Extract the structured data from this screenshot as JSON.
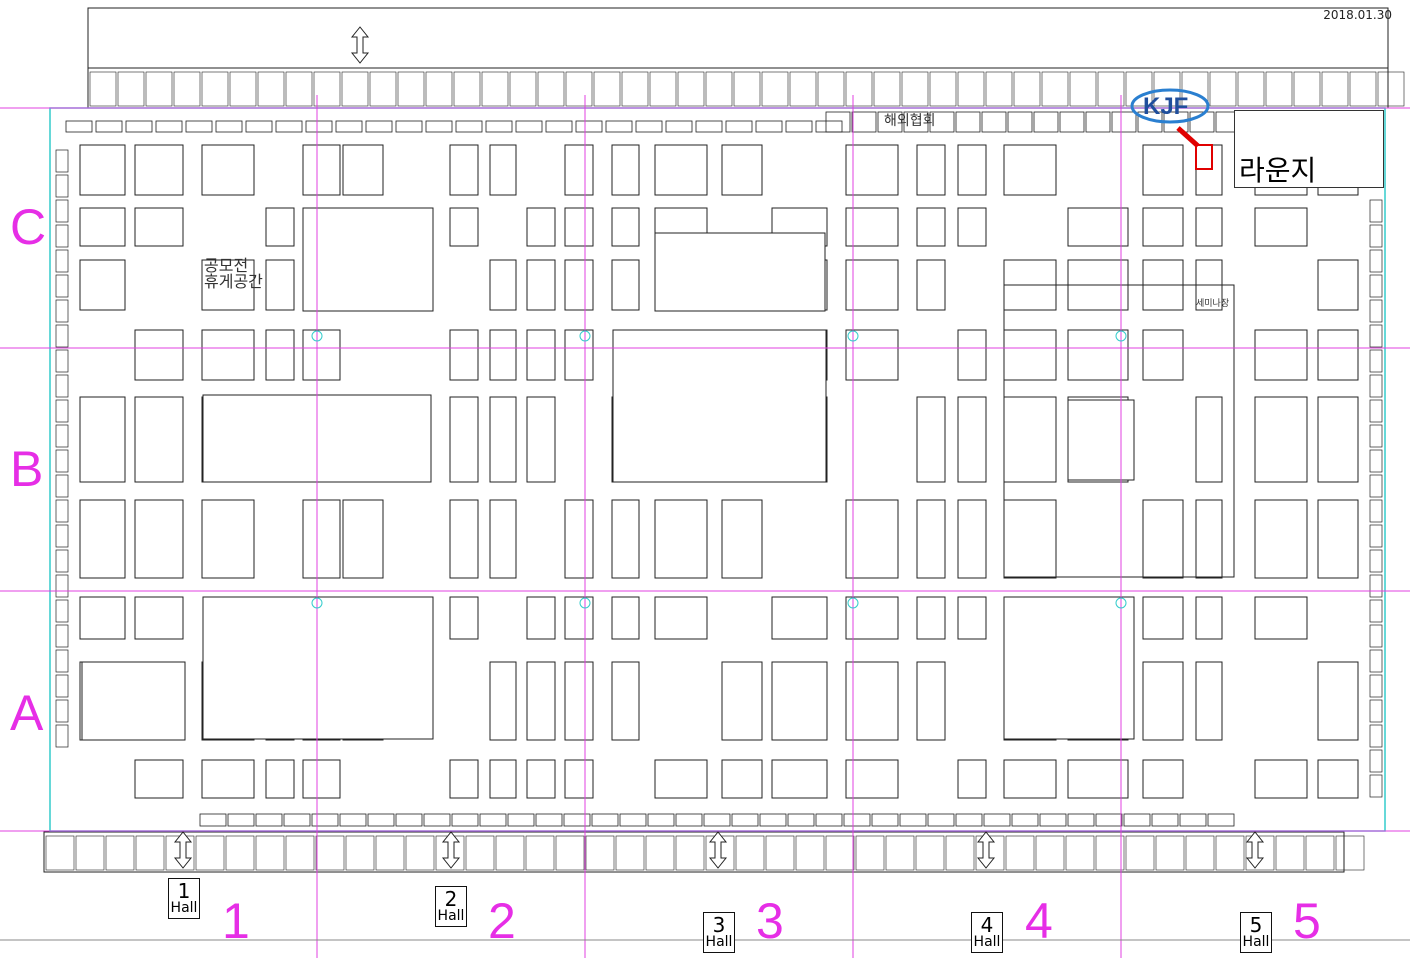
{
  "date": "2018.01.30",
  "logo": {
    "text": "KJF",
    "color": "#1f4e9c"
  },
  "rows": [
    "C",
    "B",
    "A"
  ],
  "halls": [
    {
      "number": "1",
      "box": "1",
      "label": "Hall"
    },
    {
      "number": "2",
      "box": "2",
      "label": "Hall"
    },
    {
      "number": "3",
      "box": "3",
      "label": "Hall"
    },
    {
      "number": "4",
      "box": "4",
      "label": "Hall"
    },
    {
      "number": "5",
      "box": "5",
      "label": "Hall"
    }
  ],
  "areas": {
    "lounge": "라운지",
    "overseas": "해외협회",
    "contest_line1": "공모전",
    "contest_line2": "휴게공간",
    "seminar": "세미나장"
  },
  "colors": {
    "grid": "#e040e0",
    "marker": "#e00000",
    "outline": "#33cccc",
    "label": "#e62ee6"
  }
}
